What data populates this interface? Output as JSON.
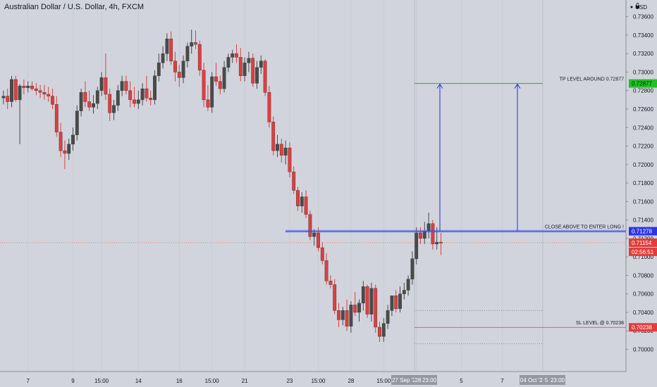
{
  "title": "Australian Dollar / U.S. Dollar, 4h, FXCM",
  "colors": {
    "background": "#d1d4dc",
    "up_candle": "#4a4a4a",
    "down_candle": "#e23d3d",
    "tp_line": "#21b421",
    "entry_line": "#3a4ff0",
    "arrow": "#1f2fd9",
    "sl_line": "#e23d3d",
    "price_dotted": "#e8725a",
    "grid": "#c3c6cf"
  },
  "chart_data": {
    "type": "candlestick",
    "title": "Australian Dollar / U.S. Dollar, 4h, FXCM",
    "currency": "USD",
    "ylim": [
      0.6976,
      0.7378
    ],
    "y_ticks": [
      0.7,
      0.702,
      0.704,
      0.706,
      0.708,
      0.71,
      0.712,
      0.714,
      0.716,
      0.718,
      0.72,
      0.722,
      0.724,
      0.726,
      0.728,
      0.73,
      0.732,
      0.734,
      0.736
    ],
    "y_tick_labels": [
      "0.70000",
      "0.70200",
      "0.70400",
      "0.70600",
      "0.70800",
      "0.71000",
      "0.71200",
      "0.71400",
      "0.71600",
      "0.71800",
      "0.72000",
      "0.72200",
      "0.72400",
      "0.72600",
      "0.72800",
      "0.73000",
      "0.73200",
      "0.73400",
      "0.73600"
    ],
    "x_labels": [
      "7",
      "9",
      "15:00",
      "14",
      "16",
      "15:00",
      "21",
      "23",
      "15:00",
      "28",
      "15:00",
      "Oct",
      "5",
      "7"
    ],
    "x_label_bars": [
      6,
      17,
      24,
      33,
      43,
      51,
      59,
      70,
      77,
      85,
      93,
      101,
      112,
      122
    ],
    "total_bars": 128,
    "candles": [
      [
        0.7272,
        0.728,
        0.7265,
        0.7274
      ],
      [
        0.7274,
        0.7282,
        0.726,
        0.7268
      ],
      [
        0.7268,
        0.7296,
        0.7262,
        0.7292
      ],
      [
        0.7292,
        0.7296,
        0.7268,
        0.727
      ],
      [
        0.727,
        0.7287,
        0.7222,
        0.7285
      ],
      [
        0.7285,
        0.7292,
        0.7276,
        0.7283
      ],
      [
        0.7283,
        0.729,
        0.7278,
        0.7285
      ],
      [
        0.7285,
        0.729,
        0.728,
        0.7282
      ],
      [
        0.7282,
        0.7288,
        0.7275,
        0.728
      ],
      [
        0.728,
        0.7286,
        0.7272,
        0.7278
      ],
      [
        0.7278,
        0.7286,
        0.727,
        0.7276
      ],
      [
        0.7276,
        0.7284,
        0.7268,
        0.7274
      ],
      [
        0.7274,
        0.7282,
        0.726,
        0.7265
      ],
      [
        0.7265,
        0.7274,
        0.723,
        0.7235
      ],
      [
        0.7235,
        0.7245,
        0.7208,
        0.7215
      ],
      [
        0.7215,
        0.7226,
        0.7195,
        0.7212
      ],
      [
        0.7212,
        0.7228,
        0.7205,
        0.7222
      ],
      [
        0.7222,
        0.724,
        0.7215,
        0.7232
      ],
      [
        0.7232,
        0.7264,
        0.7226,
        0.7258
      ],
      [
        0.7258,
        0.7282,
        0.7252,
        0.7278
      ],
      [
        0.7278,
        0.729,
        0.7262,
        0.7268
      ],
      [
        0.7268,
        0.728,
        0.7258,
        0.7262
      ],
      [
        0.7262,
        0.7275,
        0.7255,
        0.7266
      ],
      [
        0.7266,
        0.7284,
        0.726,
        0.728
      ],
      [
        0.728,
        0.73,
        0.7274,
        0.7294
      ],
      [
        0.7294,
        0.732,
        0.727,
        0.7276
      ],
      [
        0.7276,
        0.7282,
        0.7247,
        0.7256
      ],
      [
        0.7256,
        0.727,
        0.7248,
        0.7264
      ],
      [
        0.7264,
        0.7286,
        0.7258,
        0.728
      ],
      [
        0.728,
        0.7296,
        0.7274,
        0.729
      ],
      [
        0.729,
        0.7296,
        0.7276,
        0.728
      ],
      [
        0.728,
        0.729,
        0.7262,
        0.727
      ],
      [
        0.727,
        0.7284,
        0.7262,
        0.7266
      ],
      [
        0.7266,
        0.728,
        0.726,
        0.727
      ],
      [
        0.727,
        0.7288,
        0.7264,
        0.7282
      ],
      [
        0.7282,
        0.7296,
        0.7268,
        0.7272
      ],
      [
        0.7272,
        0.728,
        0.7264,
        0.727
      ],
      [
        0.727,
        0.7302,
        0.7265,
        0.7296
      ],
      [
        0.7296,
        0.732,
        0.729,
        0.731
      ],
      [
        0.731,
        0.7328,
        0.7304,
        0.732
      ],
      [
        0.732,
        0.7342,
        0.7312,
        0.7336
      ],
      [
        0.7336,
        0.7344,
        0.7308,
        0.7312
      ],
      [
        0.7312,
        0.7322,
        0.729,
        0.73
      ],
      [
        0.73,
        0.7308,
        0.7284,
        0.7294
      ],
      [
        0.7294,
        0.7318,
        0.7288,
        0.7312
      ],
      [
        0.7312,
        0.7332,
        0.7305,
        0.7328
      ],
      [
        0.7328,
        0.7346,
        0.732,
        0.7332
      ],
      [
        0.7332,
        0.7345,
        0.7325,
        0.733
      ],
      [
        0.733,
        0.7334,
        0.7296,
        0.7302
      ],
      [
        0.7302,
        0.731,
        0.7262,
        0.727
      ],
      [
        0.727,
        0.7286,
        0.7258,
        0.7262
      ],
      [
        0.7262,
        0.73,
        0.7256,
        0.7295
      ],
      [
        0.7295,
        0.731,
        0.7285,
        0.729
      ],
      [
        0.729,
        0.7296,
        0.7276,
        0.7282
      ],
      [
        0.7282,
        0.7312,
        0.7278,
        0.7305
      ],
      [
        0.7305,
        0.732,
        0.73,
        0.7316
      ],
      [
        0.7316,
        0.7324,
        0.731,
        0.732
      ],
      [
        0.732,
        0.733,
        0.731,
        0.7316
      ],
      [
        0.7316,
        0.7326,
        0.729,
        0.7296
      ],
      [
        0.7296,
        0.7316,
        0.729,
        0.731
      ],
      [
        0.731,
        0.7322,
        0.73,
        0.7315
      ],
      [
        0.7315,
        0.732,
        0.7284,
        0.7288
      ],
      [
        0.7288,
        0.7312,
        0.7282,
        0.7305
      ],
      [
        0.7305,
        0.7318,
        0.7298,
        0.7312
      ],
      [
        0.7312,
        0.7314,
        0.7274,
        0.7278
      ],
      [
        0.7278,
        0.7285,
        0.724,
        0.7246
      ],
      [
        0.7246,
        0.7252,
        0.721,
        0.7215
      ],
      [
        0.7215,
        0.7232,
        0.7208,
        0.7222
      ],
      [
        0.7222,
        0.7228,
        0.7202,
        0.721
      ],
      [
        0.721,
        0.7226,
        0.72,
        0.7218
      ],
      [
        0.7218,
        0.7224,
        0.7186,
        0.7192
      ],
      [
        0.7192,
        0.7198,
        0.7168,
        0.7172
      ],
      [
        0.7172,
        0.7176,
        0.715,
        0.7155
      ],
      [
        0.7155,
        0.717,
        0.7148,
        0.7165
      ],
      [
        0.7165,
        0.7172,
        0.7142,
        0.7146
      ],
      [
        0.7146,
        0.715,
        0.7118,
        0.7122
      ],
      [
        0.7122,
        0.713,
        0.7112,
        0.7126
      ],
      [
        0.7126,
        0.7132,
        0.7106,
        0.711
      ],
      [
        0.711,
        0.7116,
        0.7092,
        0.7096
      ],
      [
        0.7096,
        0.7104,
        0.707,
        0.7074
      ],
      [
        0.7074,
        0.708,
        0.7066,
        0.707
      ],
      [
        0.707,
        0.7076,
        0.7038,
        0.7042
      ],
      [
        0.7042,
        0.705,
        0.7024,
        0.7032
      ],
      [
        0.7032,
        0.7046,
        0.7026,
        0.7042
      ],
      [
        0.7042,
        0.7054,
        0.702,
        0.7025
      ],
      [
        0.7025,
        0.7052,
        0.7018,
        0.7048
      ],
      [
        0.7048,
        0.7062,
        0.7036,
        0.704
      ],
      [
        0.704,
        0.7054,
        0.703,
        0.705
      ],
      [
        0.705,
        0.7074,
        0.7042,
        0.7068
      ],
      [
        0.7068,
        0.707,
        0.7034,
        0.7038
      ],
      [
        0.7038,
        0.7072,
        0.703,
        0.7066
      ],
      [
        0.7066,
        0.707,
        0.7018,
        0.7024
      ],
      [
        0.7024,
        0.703,
        0.7008,
        0.7014
      ],
      [
        0.7014,
        0.7034,
        0.7008,
        0.7028
      ],
      [
        0.7028,
        0.7048,
        0.7022,
        0.7042
      ],
      [
        0.7042,
        0.7058,
        0.7036,
        0.7058
      ],
      [
        0.7058,
        0.7064,
        0.704,
        0.7044
      ],
      [
        0.7044,
        0.7068,
        0.704,
        0.706
      ],
      [
        0.706,
        0.7072,
        0.7054,
        0.7064
      ],
      [
        0.7064,
        0.708,
        0.7058,
        0.7076
      ],
      [
        0.7076,
        0.7106,
        0.707,
        0.7098
      ],
      [
        0.7098,
        0.7132,
        0.7092,
        0.7126
      ],
      [
        0.7126,
        0.7132,
        0.7114,
        0.712
      ],
      [
        0.712,
        0.7138,
        0.7114,
        0.7128
      ],
      [
        0.7128,
        0.7148,
        0.712,
        0.7136
      ],
      [
        0.7136,
        0.714,
        0.7108,
        0.7114
      ],
      [
        0.7114,
        0.7132,
        0.7108,
        0.7116
      ],
      [
        0.7116,
        0.7126,
        0.7102,
        0.7115
      ]
    ],
    "annotations": [
      {
        "label": "TP LEVEL AROUND 0.72877",
        "price": 0.72877,
        "price_label": "0.72877"
      },
      {
        "label": "CLOSE ABOVE TO ENTER LONG !",
        "price": 0.71278,
        "price_label": "0.71278"
      },
      {
        "label": "SL LEVEL @ 0.70238",
        "price": 0.70238,
        "price_label": "0.70238"
      }
    ],
    "last_price": 0.71154,
    "last_price_label": "0.71154",
    "countdown": "02:56:51",
    "time_badges": [
      "27 Sep '20",
      "28",
      "23:00",
      "04 Oct '20",
      "5",
      "23:00"
    ]
  },
  "axis": {
    "currency_label": "USD",
    "lock_icon": "lock-icon",
    "tick_mark_icon": "dot-icon"
  }
}
